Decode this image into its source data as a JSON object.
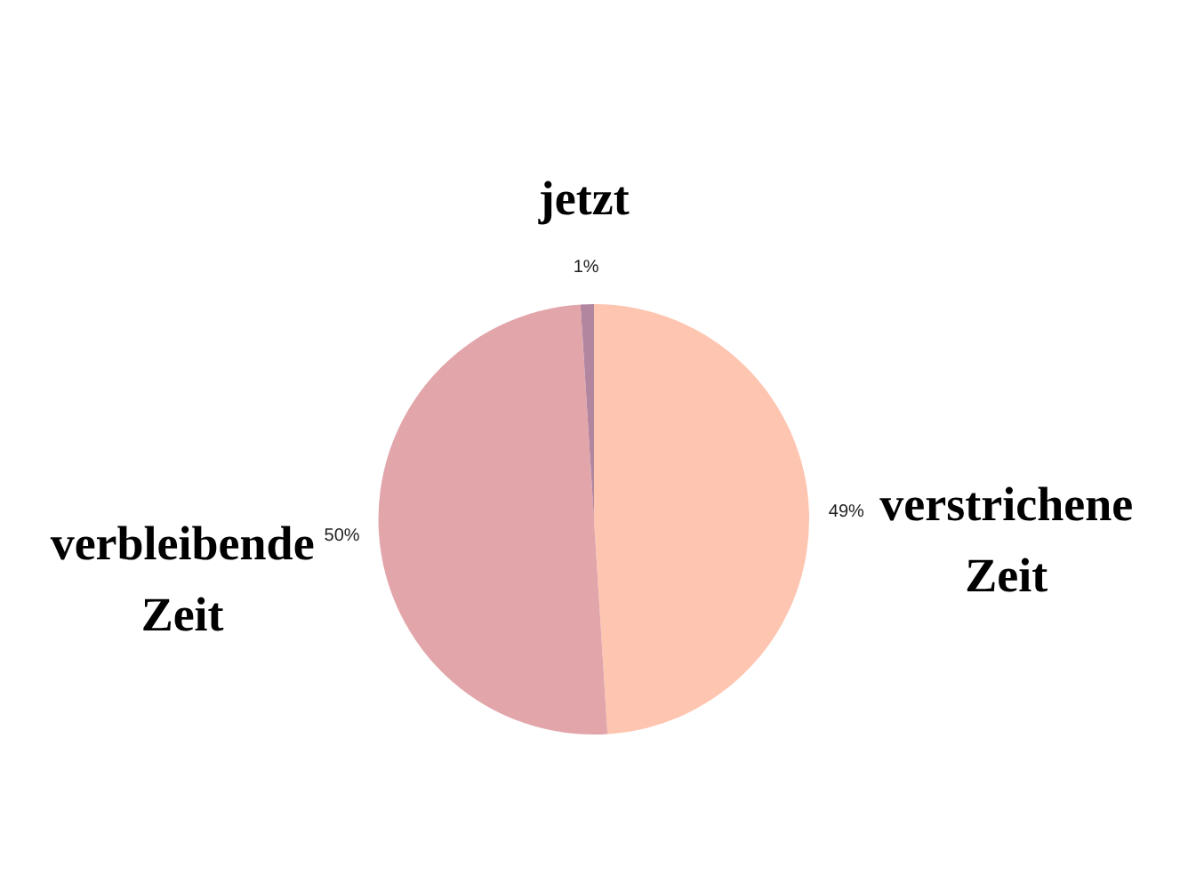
{
  "chart_data": {
    "type": "pie",
    "categories": [
      "verstrichene Zeit",
      "verbleibende Zeit",
      "jetzt"
    ],
    "values": [
      49,
      50,
      1
    ],
    "colors": [
      "#fec5b0",
      "#e2a5aa",
      "#b386a0"
    ],
    "value_labels": [
      "49%",
      "50%",
      "1%"
    ]
  }
}
